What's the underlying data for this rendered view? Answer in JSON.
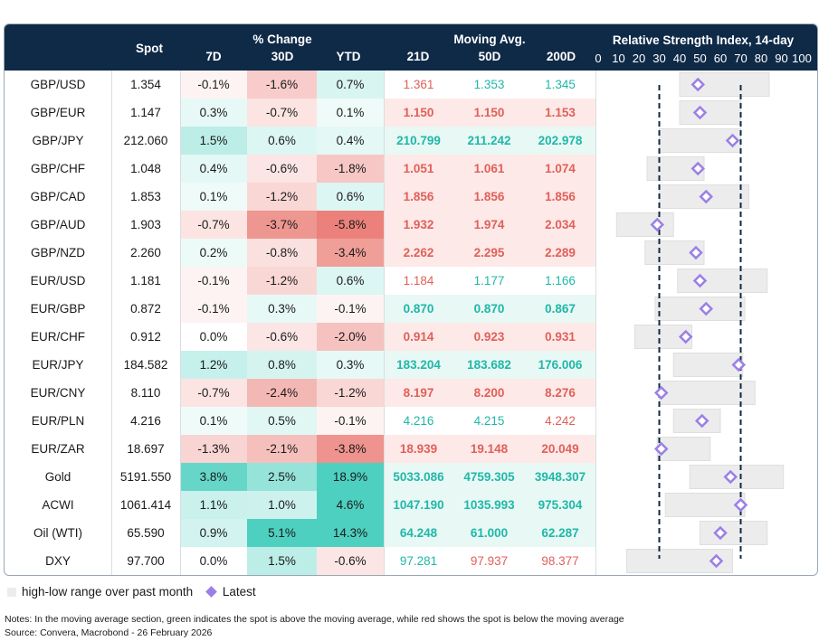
{
  "header": {
    "spot": "Spot",
    "pct_change": "% Change",
    "d7": "7D",
    "d30": "30D",
    "ytd": "YTD",
    "moving_avg": "Moving Avg.",
    "ma21": "21D",
    "ma50": "50D",
    "ma200": "200D",
    "rsi_title": "Relative Strength Index, 14-day",
    "rsi_ticks": [
      "0",
      "10",
      "20",
      "30",
      "40",
      "50",
      "60",
      "70",
      "80",
      "90",
      "100"
    ]
  },
  "colors": {
    "header_bg": "#0f2a47",
    "green_text": "#1fb8a8",
    "red_text": "#e0605a",
    "latest_marker": "#9b7fe6",
    "range_bar": "#ececec"
  },
  "chart_data": {
    "type": "table",
    "rsi_axis": [
      0,
      100
    ],
    "rsi_thresholds": [
      30,
      70
    ],
    "rows": [
      {
        "name": "GBP/USD",
        "spot": "1.354",
        "d7": "-0.1%",
        "d30": "-1.6%",
        "ytd": "0.7%",
        "ma21": "1.361",
        "ma50": "1.353",
        "ma200": "1.345",
        "ma_dir": [
          "red",
          "green",
          "green"
        ],
        "ma_bold": false,
        "rsi_low": 40,
        "rsi_high": 84,
        "rsi": 49
      },
      {
        "name": "GBP/EUR",
        "spot": "1.147",
        "d7": "0.3%",
        "d30": "-0.7%",
        "ytd": "0.1%",
        "ma21": "1.150",
        "ma50": "1.150",
        "ma200": "1.153",
        "ma_dir": [
          "red",
          "red",
          "red"
        ],
        "ma_bold": true,
        "rsi_low": 40,
        "rsi_high": 70,
        "rsi": 50
      },
      {
        "name": "GBP/JPY",
        "spot": "212.060",
        "d7": "1.5%",
        "d30": "0.6%",
        "ytd": "0.4%",
        "ma21": "210.799",
        "ma50": "211.242",
        "ma200": "202.978",
        "ma_dir": [
          "green",
          "green",
          "green"
        ],
        "ma_bold": true,
        "rsi_low": 30,
        "rsi_high": 70,
        "rsi": 66
      },
      {
        "name": "GBP/CHF",
        "spot": "1.048",
        "d7": "0.4%",
        "d30": "-0.6%",
        "ytd": "-1.8%",
        "ma21": "1.051",
        "ma50": "1.061",
        "ma200": "1.074",
        "ma_dir": [
          "red",
          "red",
          "red"
        ],
        "ma_bold": true,
        "rsi_low": 24,
        "rsi_high": 52,
        "rsi": 49
      },
      {
        "name": "GBP/CAD",
        "spot": "1.853",
        "d7": "0.1%",
        "d30": "-1.2%",
        "ytd": "0.6%",
        "ma21": "1.856",
        "ma50": "1.856",
        "ma200": "1.856",
        "ma_dir": [
          "red",
          "red",
          "red"
        ],
        "ma_bold": true,
        "rsi_low": 30,
        "rsi_high": 74,
        "rsi": 53
      },
      {
        "name": "GBP/AUD",
        "spot": "1.903",
        "d7": "-0.7%",
        "d30": "-3.7%",
        "ytd": "-5.8%",
        "ma21": "1.932",
        "ma50": "1.974",
        "ma200": "2.034",
        "ma_dir": [
          "red",
          "red",
          "red"
        ],
        "ma_bold": true,
        "rsi_low": 9,
        "rsi_high": 37,
        "rsi": 29
      },
      {
        "name": "GBP/NZD",
        "spot": "2.260",
        "d7": "0.2%",
        "d30": "-0.8%",
        "ytd": "-3.4%",
        "ma21": "2.262",
        "ma50": "2.295",
        "ma200": "2.289",
        "ma_dir": [
          "red",
          "red",
          "red"
        ],
        "ma_bold": true,
        "rsi_low": 23,
        "rsi_high": 52,
        "rsi": 48
      },
      {
        "name": "EUR/USD",
        "spot": "1.181",
        "d7": "-0.1%",
        "d30": "-1.2%",
        "ytd": "0.6%",
        "ma21": "1.184",
        "ma50": "1.177",
        "ma200": "1.166",
        "ma_dir": [
          "red",
          "green",
          "green"
        ],
        "ma_bold": false,
        "rsi_low": 39,
        "rsi_high": 83,
        "rsi": 50
      },
      {
        "name": "EUR/GBP",
        "spot": "0.872",
        "d7": "-0.1%",
        "d30": "0.3%",
        "ytd": "-0.1%",
        "ma21": "0.870",
        "ma50": "0.870",
        "ma200": "0.867",
        "ma_dir": [
          "green",
          "green",
          "green"
        ],
        "ma_bold": true,
        "rsi_low": 28,
        "rsi_high": 72,
        "rsi": 53
      },
      {
        "name": "EUR/CHF",
        "spot": "0.912",
        "d7": "0.0%",
        "d30": "-0.6%",
        "ytd": "-2.0%",
        "ma21": "0.914",
        "ma50": "0.923",
        "ma200": "0.931",
        "ma_dir": [
          "red",
          "red",
          "red"
        ],
        "ma_bold": true,
        "rsi_low": 18,
        "rsi_high": 46,
        "rsi": 43
      },
      {
        "name": "EUR/JPY",
        "spot": "184.582",
        "d7": "1.2%",
        "d30": "0.8%",
        "ytd": "0.3%",
        "ma21": "183.204",
        "ma50": "183.682",
        "ma200": "176.006",
        "ma_dir": [
          "green",
          "green",
          "green"
        ],
        "ma_bold": true,
        "rsi_low": 37,
        "rsi_high": 71,
        "rsi": 69
      },
      {
        "name": "EUR/CNY",
        "spot": "8.110",
        "d7": "-0.7%",
        "d30": "-2.4%",
        "ytd": "-1.2%",
        "ma21": "8.197",
        "ma50": "8.200",
        "ma200": "8.276",
        "ma_dir": [
          "red",
          "red",
          "red"
        ],
        "ma_bold": true,
        "rsi_low": 30,
        "rsi_high": 77,
        "rsi": 31
      },
      {
        "name": "EUR/PLN",
        "spot": "4.216",
        "d7": "0.1%",
        "d30": "0.5%",
        "ytd": "-0.1%",
        "ma21": "4.216",
        "ma50": "4.215",
        "ma200": "4.242",
        "ma_dir": [
          "green",
          "green",
          "red"
        ],
        "ma_bold": false,
        "rsi_low": 37,
        "rsi_high": 60,
        "rsi": 51
      },
      {
        "name": "EUR/ZAR",
        "spot": "18.697",
        "d7": "-1.3%",
        "d30": "-2.1%",
        "ytd": "-3.8%",
        "ma21": "18.939",
        "ma50": "19.148",
        "ma200": "20.049",
        "ma_dir": [
          "red",
          "red",
          "red"
        ],
        "ma_bold": true,
        "rsi_low": 29,
        "rsi_high": 55,
        "rsi": 31
      },
      {
        "name": "Gold",
        "spot": "5191.550",
        "d7": "3.8%",
        "d30": "2.5%",
        "ytd": "18.9%",
        "ma21": "5033.086",
        "ma50": "4759.305",
        "ma200": "3948.307",
        "ma_dir": [
          "green",
          "green",
          "green"
        ],
        "ma_bold": true,
        "rsi_low": 45,
        "rsi_high": 91,
        "rsi": 65
      },
      {
        "name": "ACWI",
        "spot": "1061.414",
        "d7": "1.1%",
        "d30": "1.0%",
        "ytd": "4.6%",
        "ma21": "1047.190",
        "ma50": "1035.993",
        "ma200": "975.304",
        "ma_dir": [
          "green",
          "green",
          "green"
        ],
        "ma_bold": true,
        "rsi_low": 33,
        "rsi_high": 72,
        "rsi": 70
      },
      {
        "name": "Oil (WTI)",
        "spot": "65.590",
        "d7": "0.9%",
        "d30": "5.1%",
        "ytd": "14.3%",
        "ma21": "64.248",
        "ma50": "61.000",
        "ma200": "62.287",
        "ma_dir": [
          "green",
          "green",
          "green"
        ],
        "ma_bold": true,
        "rsi_low": 50,
        "rsi_high": 83,
        "rsi": 60
      },
      {
        "name": "DXY",
        "spot": "97.700",
        "d7": "0.0%",
        "d30": "1.5%",
        "ytd": "-0.6%",
        "ma21": "97.281",
        "ma50": "97.937",
        "ma200": "98.377",
        "ma_dir": [
          "green",
          "red",
          "red"
        ],
        "ma_bold": false,
        "rsi_low": 14,
        "rsi_high": 66,
        "rsi": 58
      }
    ]
  },
  "legend": {
    "range_label": "high-low range over past month",
    "latest_label": "Latest"
  },
  "notes": {
    "line1": "Notes: In the moving average section, green indicates the spot is above the moving average, while red shows the spot is below the moving average",
    "line2": "Source: Convera, Macrobond - 26 February 2026"
  }
}
